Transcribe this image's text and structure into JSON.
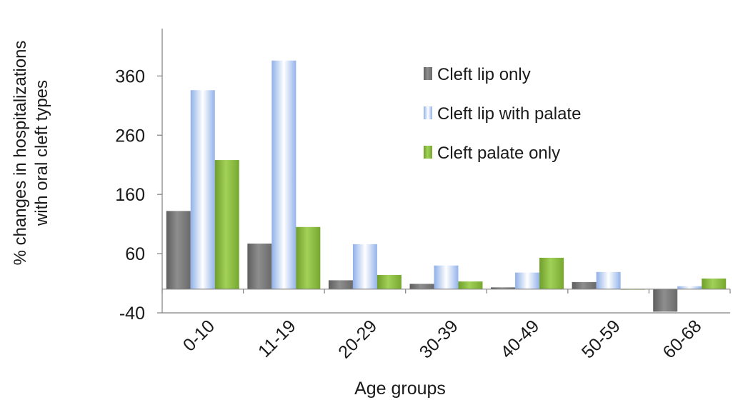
{
  "chart_data": {
    "type": "bar",
    "title": "",
    "xlabel": "Age groups",
    "ylabel": "% changes in  hospitalizations with oral cleft types",
    "ylim": [
      -40,
      440
    ],
    "yticks": [
      -40,
      60,
      160,
      260,
      360
    ],
    "grid": false,
    "legend_position": "top-right",
    "categories": [
      "0-10",
      "11-19",
      "20-29",
      "30-39",
      "40-49",
      "50-59",
      "60-68"
    ],
    "series": [
      {
        "name": "Cleft lip only",
        "color": "#7f7f7f",
        "values": [
          132,
          77,
          15,
          9,
          3,
          12,
          -38
        ]
      },
      {
        "name": "Cleft lip with palate",
        "color": "#a9c4f2",
        "values": [
          336,
          386,
          76,
          40,
          28,
          29,
          5
        ]
      },
      {
        "name": "Cleft palate only",
        "color": "#8cbf3f",
        "values": [
          218,
          105,
          24,
          13,
          53,
          -1,
          18
        ]
      }
    ]
  }
}
